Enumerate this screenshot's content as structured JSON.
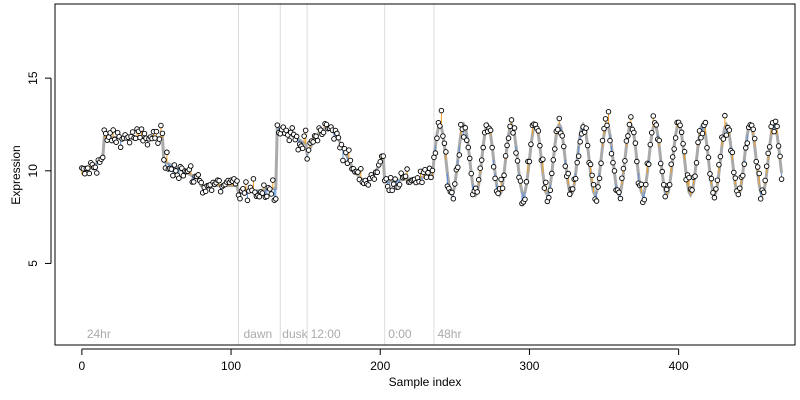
{
  "chart_data": {
    "type": "scatter",
    "title": "",
    "xlabel": "Sample index",
    "ylabel": "Expression",
    "xlim": [
      -18,
      478
    ],
    "ylim": [
      0.6,
      19.0
    ],
    "x_ticks": [
      0,
      100,
      200,
      300,
      400
    ],
    "y_ticks": [
      5,
      10,
      15
    ],
    "grid": false,
    "legend": "none",
    "colors": {
      "fitted": "#aaaaaa",
      "residual_positive": "#f0a020",
      "residual_negative": "#5b8fd6",
      "points_stroke": "#000000",
      "points_fill": "#ffffff",
      "phase_lines": "#dddddd",
      "phase_text": "#aaaaaa"
    },
    "phase_boundaries": [
      105,
      133,
      151,
      203,
      236
    ],
    "phase_labels": [
      {
        "x": 2,
        "text": "24hr"
      },
      {
        "x": 107,
        "text": "dawn"
      },
      {
        "x": 133,
        "text": "dusk"
      },
      {
        "x": 152,
        "text": "12:00"
      },
      {
        "x": 204,
        "text": "0:00"
      },
      {
        "x": 237,
        "text": "48hr"
      }
    ],
    "segments": [
      {
        "start": 0,
        "end": 15,
        "base": 9.8,
        "slope": 0.06
      },
      {
        "start": 15,
        "end": 55,
        "base": 11.8,
        "slope": 0.0
      },
      {
        "start": 55,
        "end": 80,
        "base": 10.5,
        "slope": -0.04
      },
      {
        "start": 80,
        "end": 105,
        "base": 9.2,
        "slope": 0.0
      },
      {
        "start": 105,
        "end": 131,
        "base": 8.8,
        "slope": 0.01
      },
      {
        "start": 131,
        "end": 151,
        "base": 12.4,
        "slope": -0.05
      },
      {
        "start": 151,
        "end": 203,
        "wave": {
          "mean": 10.9,
          "amp": 1.4,
          "period": 52,
          "phase": 0
        }
      },
      {
        "start": 203,
        "end": 236,
        "base": 9.4,
        "slope": 0.01
      },
      {
        "start": 236,
        "end": 470,
        "wave": {
          "mean": 10.6,
          "amp": 1.9,
          "period": 16,
          "phase": 0
        }
      }
    ],
    "n_points": 470,
    "seed": 12345
  }
}
